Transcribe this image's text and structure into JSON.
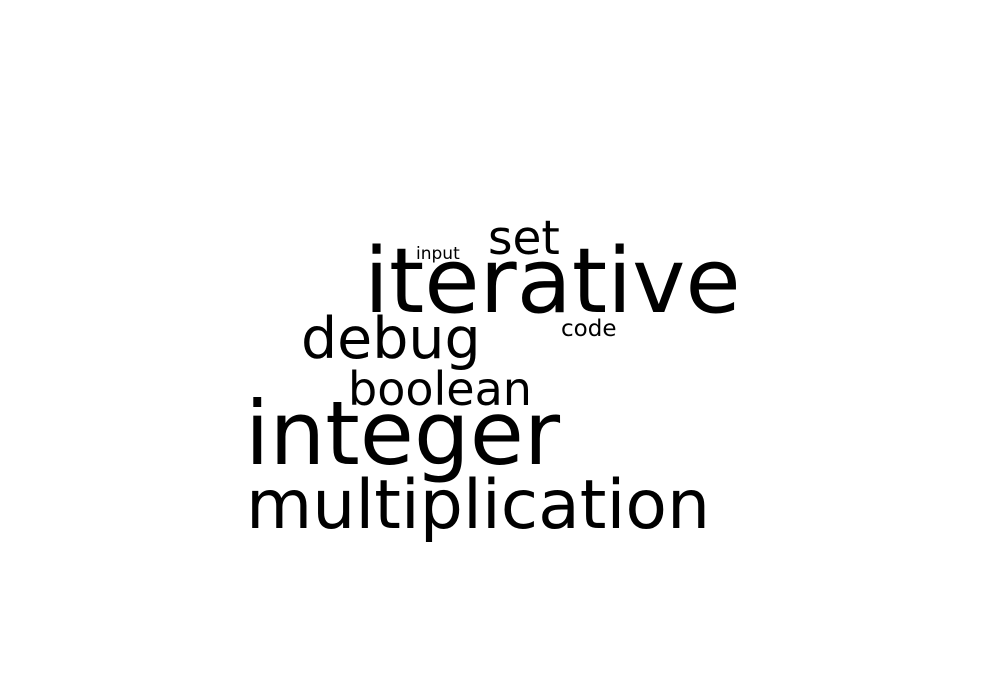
{
  "word_cloud": {
    "text_color": "#000000",
    "background": "#ffffff",
    "words": {
      "iterative": "iterative",
      "integer": "integer",
      "multiplication": "multiplication",
      "debug": "debug",
      "boolean": "boolean",
      "set": "set",
      "code": "code",
      "input": "input"
    }
  }
}
